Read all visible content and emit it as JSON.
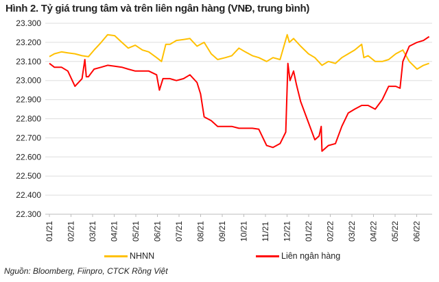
{
  "chart_data": {
    "type": "line",
    "title": "Hình 2. Tỷ giá trung tâm và trên liên ngân hàng (VNĐ, trung bình)",
    "xlabel": "",
    "ylabel": "",
    "ylim": [
      22300,
      23300
    ],
    "yticks": [
      22300,
      22400,
      22500,
      22600,
      22700,
      22800,
      22900,
      23000,
      23100,
      23200,
      23300
    ],
    "ytick_labels": [
      "22.300",
      "22.400",
      "22.500",
      "22.600",
      "22.700",
      "22.800",
      "22.900",
      "23.000",
      "23.100",
      "23.200",
      "23.300"
    ],
    "xtick_labels": [
      "01/21",
      "02/21",
      "03/21",
      "04/21",
      "05/21",
      "06/21",
      "07/21",
      "08/21",
      "09/21",
      "10/21",
      "11/21",
      "12/21",
      "01/22",
      "02/22",
      "03/22",
      "04/22",
      "05/22",
      "06/22"
    ],
    "grid": "horizontal",
    "legend_position": "bottom",
    "series": [
      {
        "name": "NHNN",
        "color": "#FFC000",
        "points": [
          [
            "2021-01-01",
            23125
          ],
          [
            "2021-01-08",
            23140
          ],
          [
            "2021-01-18",
            23150
          ],
          [
            "2021-01-27",
            23145
          ],
          [
            "2021-02-06",
            23140
          ],
          [
            "2021-02-16",
            23130
          ],
          [
            "2021-02-25",
            23125
          ],
          [
            "2021-03-05",
            23160
          ],
          [
            "2021-03-15",
            23200
          ],
          [
            "2021-03-24",
            23240
          ],
          [
            "2021-04-03",
            23235
          ],
          [
            "2021-04-13",
            23200
          ],
          [
            "2021-04-22",
            23170
          ],
          [
            "2021-05-02",
            23185
          ],
          [
            "2021-05-12",
            23160
          ],
          [
            "2021-05-21",
            23150
          ],
          [
            "2021-06-01",
            23120
          ],
          [
            "2021-06-08",
            23100
          ],
          [
            "2021-06-14",
            23190
          ],
          [
            "2021-06-20",
            23190
          ],
          [
            "2021-06-29",
            23210
          ],
          [
            "2021-07-09",
            23215
          ],
          [
            "2021-07-18",
            23220
          ],
          [
            "2021-07-28",
            23180
          ],
          [
            "2021-08-07",
            23200
          ],
          [
            "2021-08-17",
            23140
          ],
          [
            "2021-08-26",
            23110
          ],
          [
            "2021-09-06",
            23120
          ],
          [
            "2021-09-15",
            23130
          ],
          [
            "2021-09-25",
            23170
          ],
          [
            "2021-10-04",
            23150
          ],
          [
            "2021-10-14",
            23130
          ],
          [
            "2021-10-23",
            23120
          ],
          [
            "2021-11-03",
            23100
          ],
          [
            "2021-11-12",
            23120
          ],
          [
            "2021-11-22",
            23110
          ],
          [
            "2021-12-02",
            23240
          ],
          [
            "2021-12-05",
            23200
          ],
          [
            "2021-12-11",
            23220
          ],
          [
            "2021-12-21",
            23180
          ],
          [
            "2022-01-01",
            23140
          ],
          [
            "2022-01-10",
            23120
          ],
          [
            "2022-01-20",
            23080
          ],
          [
            "2022-01-29",
            23100
          ],
          [
            "2022-02-08",
            23090
          ],
          [
            "2022-02-17",
            23120
          ],
          [
            "2022-02-26",
            23140
          ],
          [
            "2022-03-07",
            23160
          ],
          [
            "2022-03-17",
            23190
          ],
          [
            "2022-03-20",
            23120
          ],
          [
            "2022-03-26",
            23130
          ],
          [
            "2022-04-05",
            23100
          ],
          [
            "2022-04-15",
            23100
          ],
          [
            "2022-04-24",
            23110
          ],
          [
            "2022-05-04",
            23140
          ],
          [
            "2022-05-14",
            23160
          ],
          [
            "2022-05-23",
            23100
          ],
          [
            "2022-06-03",
            23060
          ],
          [
            "2022-06-12",
            23080
          ],
          [
            "2022-06-20",
            23090
          ]
        ]
      },
      {
        "name": "Liên ngân hàng",
        "color": "#FF0000",
        "points": [
          [
            "2021-01-01",
            23090
          ],
          [
            "2021-01-08",
            23070
          ],
          [
            "2021-01-18",
            23070
          ],
          [
            "2021-01-27",
            23050
          ],
          [
            "2021-02-06",
            22970
          ],
          [
            "2021-02-16",
            23010
          ],
          [
            "2021-02-20",
            23110
          ],
          [
            "2021-02-22",
            23020
          ],
          [
            "2021-02-25",
            23020
          ],
          [
            "2021-03-05",
            23060
          ],
          [
            "2021-03-15",
            23070
          ],
          [
            "2021-03-24",
            23080
          ],
          [
            "2021-04-03",
            23075
          ],
          [
            "2021-04-13",
            23070
          ],
          [
            "2021-04-22",
            23060
          ],
          [
            "2021-05-02",
            23050
          ],
          [
            "2021-05-12",
            23050
          ],
          [
            "2021-05-21",
            23050
          ],
          [
            "2021-06-01",
            23030
          ],
          [
            "2021-06-05",
            22950
          ],
          [
            "2021-06-10",
            23010
          ],
          [
            "2021-06-20",
            23010
          ],
          [
            "2021-06-29",
            23000
          ],
          [
            "2021-07-09",
            23010
          ],
          [
            "2021-07-18",
            23030
          ],
          [
            "2021-07-28",
            22990
          ],
          [
            "2021-08-02",
            22930
          ],
          [
            "2021-08-07",
            22810
          ],
          [
            "2021-08-17",
            22790
          ],
          [
            "2021-08-26",
            22760
          ],
          [
            "2021-09-06",
            22760
          ],
          [
            "2021-09-15",
            22760
          ],
          [
            "2021-09-25",
            22750
          ],
          [
            "2021-10-04",
            22750
          ],
          [
            "2021-10-14",
            22750
          ],
          [
            "2021-10-23",
            22745
          ],
          [
            "2021-11-03",
            22660
          ],
          [
            "2021-11-12",
            22650
          ],
          [
            "2021-11-22",
            22670
          ],
          [
            "2021-11-30",
            22730
          ],
          [
            "2021-12-03",
            23090
          ],
          [
            "2021-12-06",
            23000
          ],
          [
            "2021-12-11",
            23050
          ],
          [
            "2021-12-15",
            22980
          ],
          [
            "2021-12-21",
            22890
          ],
          [
            "2022-01-01",
            22780
          ],
          [
            "2022-01-10",
            22690
          ],
          [
            "2022-01-16",
            22710
          ],
          [
            "2022-01-19",
            22760
          ],
          [
            "2022-01-20",
            22630
          ],
          [
            "2022-01-29",
            22660
          ],
          [
            "2022-02-08",
            22670
          ],
          [
            "2022-02-17",
            22760
          ],
          [
            "2022-02-26",
            22830
          ],
          [
            "2022-03-07",
            22850
          ],
          [
            "2022-03-17",
            22870
          ],
          [
            "2022-03-26",
            22870
          ],
          [
            "2022-04-05",
            22850
          ],
          [
            "2022-04-15",
            22900
          ],
          [
            "2022-04-24",
            22970
          ],
          [
            "2022-05-04",
            22970
          ],
          [
            "2022-05-10",
            22960
          ],
          [
            "2022-05-14",
            23100
          ],
          [
            "2022-05-23",
            23180
          ],
          [
            "2022-06-03",
            23200
          ],
          [
            "2022-06-12",
            23210
          ],
          [
            "2022-06-20",
            23230
          ]
        ]
      }
    ]
  },
  "source": "Nguồn: Bloomberg, Fiinpro, CTCK Rồng Việt"
}
